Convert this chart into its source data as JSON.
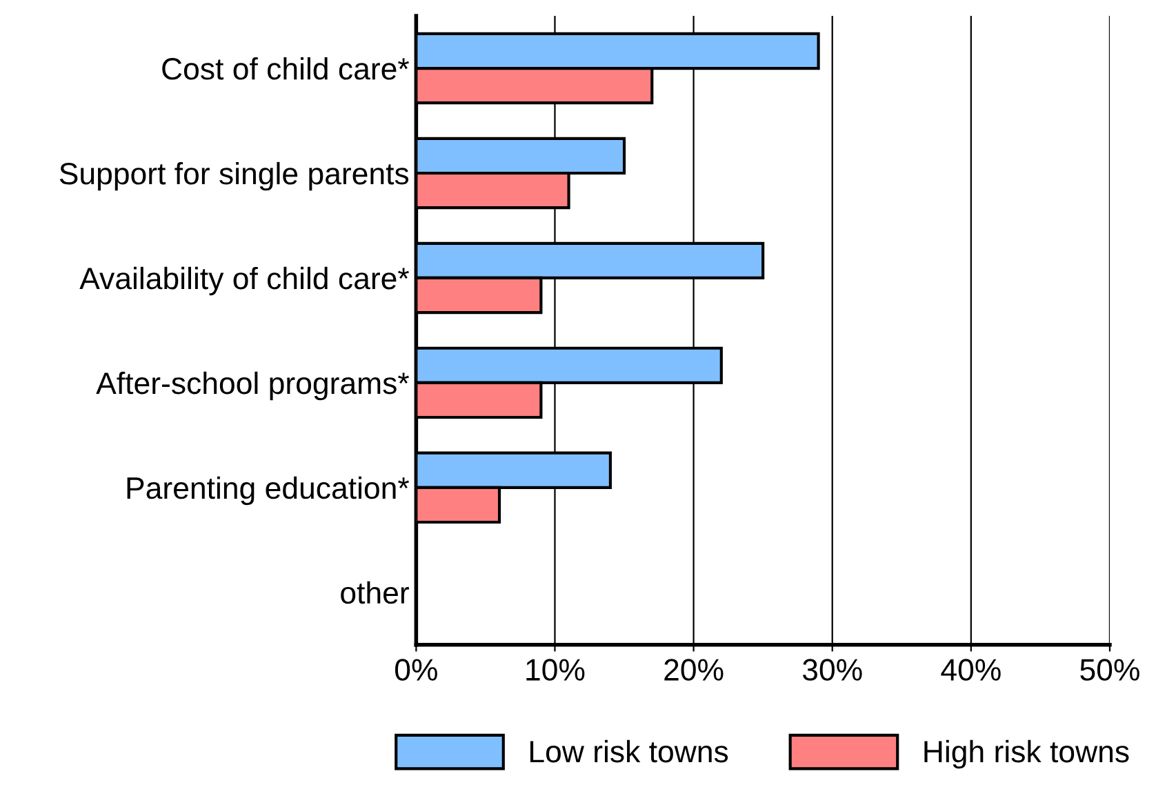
{
  "chart_data": {
    "type": "bar",
    "orientation": "horizontal",
    "categories": [
      "Cost of child care*",
      "Support for single parents",
      "Availability of child care*",
      "After-school programs*",
      "Parenting education*",
      "other"
    ],
    "series": [
      {
        "name": "Low risk towns",
        "color": "#80bfff",
        "values": [
          29,
          15,
          25,
          22,
          14,
          null
        ]
      },
      {
        "name": "High risk towns",
        "color": "#ff8080",
        "values": [
          17,
          11,
          9,
          9,
          6,
          null
        ]
      }
    ],
    "xlim": [
      0,
      50
    ],
    "xticks": [
      {
        "value": 0,
        "label": "0%"
      },
      {
        "value": 10,
        "label": "10%"
      },
      {
        "value": 20,
        "label": "20%"
      },
      {
        "value": 30,
        "label": "30%"
      },
      {
        "value": 40,
        "label": "40%"
      },
      {
        "value": 50,
        "label": "50%"
      }
    ],
    "grid": "x",
    "legend": "bottom"
  }
}
